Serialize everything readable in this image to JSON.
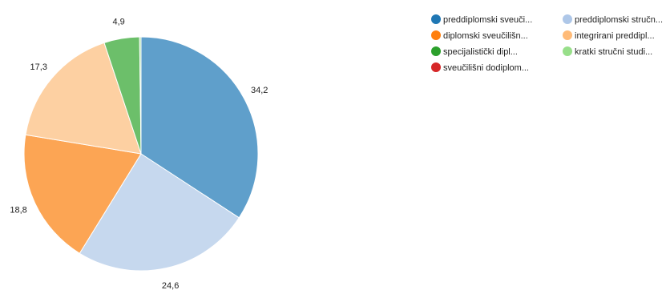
{
  "chart_data": {
    "type": "pie",
    "slices": [
      {
        "label": "preddiplomski sveuči...",
        "value": 34.2,
        "display": "34,2",
        "color": "#5f9fcb"
      },
      {
        "label": "preddiplomski stručn...",
        "value": 24.6,
        "display": "24,6",
        "color": "#c6d8ee"
      },
      {
        "label": "diplomski sveučilišn...",
        "value": 18.8,
        "display": "18,8",
        "color": "#fca554"
      },
      {
        "label": "integrirani preddipl...",
        "value": 17.3,
        "display": "17,3",
        "color": "#fdd0a2"
      },
      {
        "label": "specijalistički dipl...",
        "value": 4.9,
        "display": "4,9",
        "color": "#6cbf6a"
      },
      {
        "label": "kratki stručni studi...",
        "value": 0.2,
        "display": "",
        "color": "#a1d99b"
      },
      {
        "label": "sveučilišni dodiplom...",
        "value": 0.0,
        "display": "",
        "color": "#d62728"
      }
    ],
    "legend": {
      "placement": "top-right",
      "items": [
        {
          "label": "preddiplomski sveuči...",
          "color": "#1f77b4"
        },
        {
          "label": "preddiplomski stručn...",
          "color": "#aec7e8"
        },
        {
          "label": "diplomski sveučilišn...",
          "color": "#ff7f0e"
        },
        {
          "label": "integrirani preddipl...",
          "color": "#ffbb78"
        },
        {
          "label": "specijalistički dipl...",
          "color": "#2ca02c"
        },
        {
          "label": "kratki stručni studi...",
          "color": "#98df8a"
        },
        {
          "label": "sveučilišni dodiplom...",
          "color": "#d62728"
        }
      ]
    }
  }
}
